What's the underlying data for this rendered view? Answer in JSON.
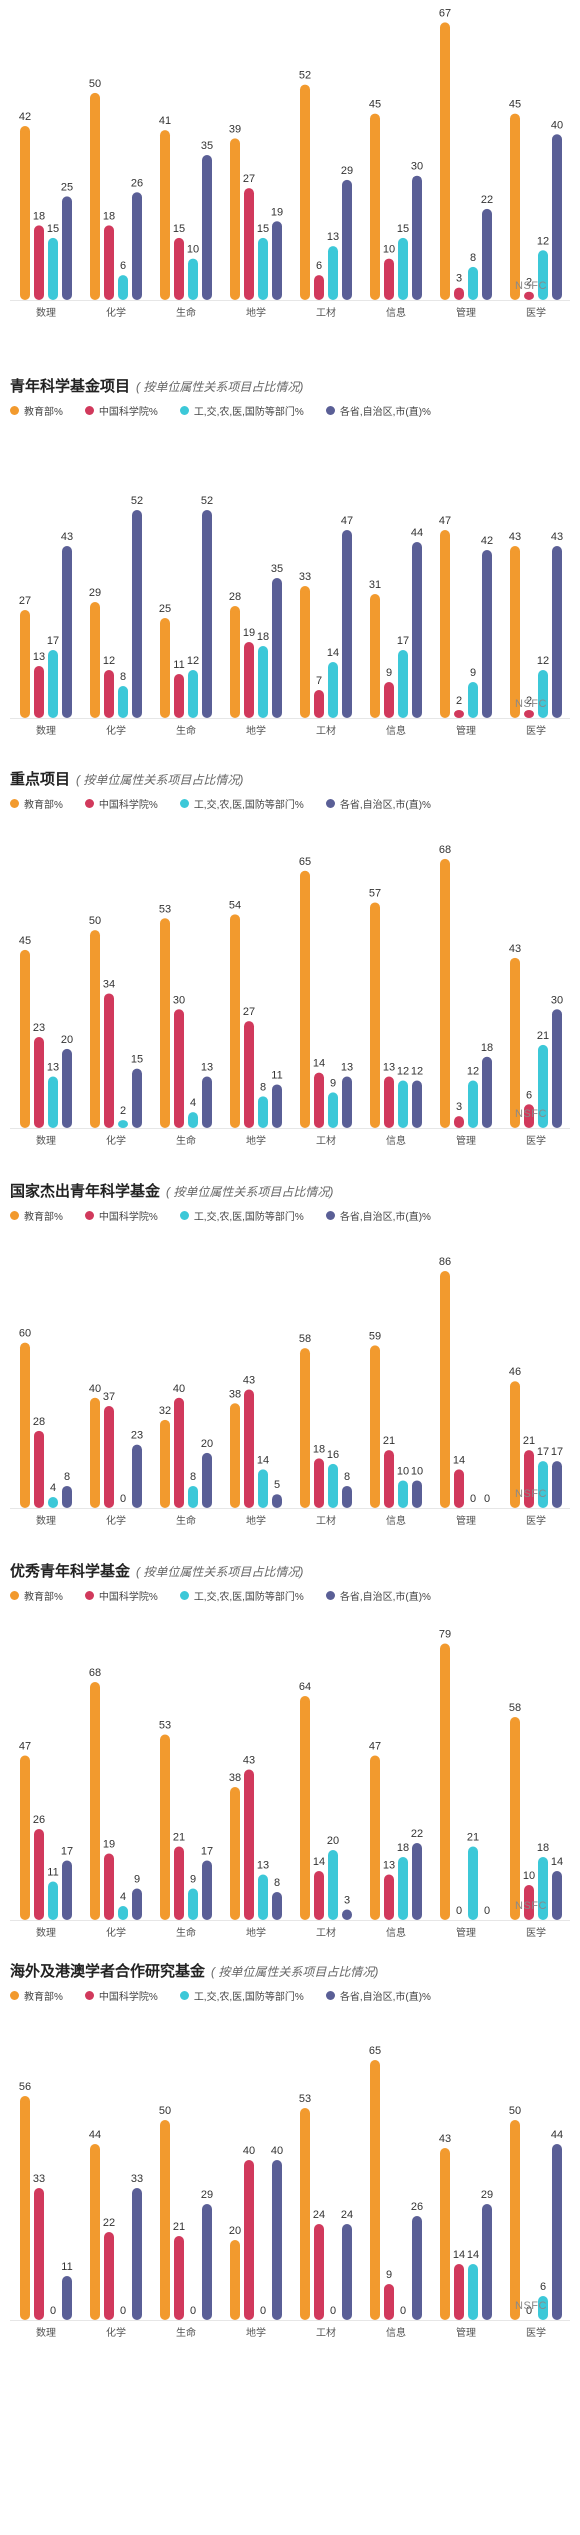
{
  "legend": [
    {
      "label": "教育部%",
      "color": "#f29a2e"
    },
    {
      "label": "中国科学院%",
      "color": "#d1395c"
    },
    {
      "label": "工,交,农,医,国防等部门%",
      "color": "#3cc8d8"
    },
    {
      "label": "各省,自治区,市(直)%",
      "color": "#5a5f96"
    }
  ],
  "watermark": "NSFC",
  "chart_data": [
    {
      "type": "bar",
      "title": "",
      "subtitle": "",
      "show_legend": false,
      "categories": [
        "数理",
        "化学",
        "生命",
        "地学",
        "工材",
        "信息",
        "管理",
        "医学"
      ],
      "series": [
        {
          "name": "教育部%",
          "values": [
            42,
            50,
            41,
            39,
            52,
            45,
            67,
            45
          ]
        },
        {
          "name": "中国科学院%",
          "values": [
            18,
            18,
            15,
            27,
            6,
            10,
            3,
            2
          ]
        },
        {
          "name": "工,交,农,医,国防等部门%",
          "values": [
            15,
            6,
            10,
            15,
            13,
            15,
            8,
            12
          ]
        },
        {
          "name": "各省,自治区,市(直)%",
          "values": [
            25,
            26,
            35,
            19,
            29,
            30,
            22,
            40
          ]
        }
      ],
      "ylim": [
        0,
        70
      ]
    },
    {
      "type": "bar",
      "title": "青年科学基金项目",
      "subtitle": "( 按单位属性关系项目占比情况)",
      "show_legend": true,
      "categories": [
        "数理",
        "化学",
        "生命",
        "地学",
        "工材",
        "信息",
        "管理",
        "医学"
      ],
      "series": [
        {
          "name": "教育部%",
          "values": [
            27,
            29,
            25,
            28,
            33,
            31,
            47,
            43
          ]
        },
        {
          "name": "中国科学院%",
          "values": [
            13,
            12,
            11,
            19,
            7,
            9,
            2,
            2
          ]
        },
        {
          "name": "工,交,农,医,国防等部门%",
          "values": [
            17,
            8,
            12,
            18,
            14,
            17,
            9,
            12
          ]
        },
        {
          "name": "各省,自治区,市(直)%",
          "values": [
            43,
            52,
            52,
            35,
            47,
            44,
            42,
            43
          ]
        }
      ],
      "ylim": [
        0,
        60
      ]
    },
    {
      "type": "bar",
      "title": "重点项目",
      "subtitle": "( 按单位属性关系项目占比情况)",
      "show_legend": true,
      "categories": [
        "数理",
        "化学",
        "生命",
        "地学",
        "工材",
        "信息",
        "管理",
        "医学"
      ],
      "series": [
        {
          "name": "教育部%",
          "values": [
            45,
            50,
            53,
            54,
            65,
            57,
            68,
            43
          ]
        },
        {
          "name": "中国科学院%",
          "values": [
            23,
            34,
            30,
            27,
            14,
            13,
            3,
            6
          ]
        },
        {
          "name": "工,交,农,医,国防等部门%",
          "values": [
            13,
            2,
            4,
            8,
            9,
            12,
            12,
            21
          ]
        },
        {
          "name": "各省,自治区,市(直)%",
          "values": [
            20,
            15,
            13,
            11,
            13,
            12,
            18,
            30
          ]
        }
      ],
      "ylim": [
        0,
        70
      ]
    },
    {
      "type": "bar",
      "title": "国家杰出青年科学基金",
      "subtitle": "( 按单位属性关系项目占比情况)",
      "show_legend": true,
      "categories": [
        "数理",
        "化学",
        "生命",
        "地学",
        "工材",
        "信息",
        "管理",
        "医学"
      ],
      "series": [
        {
          "name": "教育部%",
          "values": [
            60,
            40,
            32,
            38,
            58,
            59,
            86,
            46
          ]
        },
        {
          "name": "中国科学院%",
          "values": [
            28,
            37,
            40,
            43,
            18,
            21,
            14,
            21
          ]
        },
        {
          "name": "工,交,农,医,国防等部门%",
          "values": [
            4,
            0,
            8,
            14,
            16,
            10,
            0,
            17
          ]
        },
        {
          "name": "各省,自治区,市(直)%",
          "values": [
            8,
            23,
            20,
            5,
            8,
            10,
            0,
            17
          ]
        }
      ],
      "ylim": [
        0,
        90
      ]
    },
    {
      "type": "bar",
      "title": "优秀青年科学基金",
      "subtitle": "( 按单位属性关系项目占比情况)",
      "show_legend": true,
      "categories": [
        "数理",
        "化学",
        "生命",
        "地学",
        "工材",
        "信息",
        "管理",
        "医学"
      ],
      "series": [
        {
          "name": "教育部%",
          "values": [
            47,
            68,
            53,
            38,
            64,
            47,
            79,
            58
          ]
        },
        {
          "name": "中国科学院%",
          "values": [
            26,
            19,
            21,
            43,
            14,
            13,
            0,
            10
          ]
        },
        {
          "name": "工,交,农,医,国防等部门%",
          "values": [
            11,
            4,
            9,
            13,
            20,
            18,
            21,
            18
          ]
        },
        {
          "name": "各省,自治区,市(直)%",
          "values": [
            17,
            9,
            17,
            8,
            3,
            22,
            0,
            14
          ]
        }
      ],
      "ylim": [
        0,
        80
      ]
    },
    {
      "type": "bar",
      "title": "海外及港澳学者合作研究基金",
      "subtitle": "( 按单位属性关系项目占比情况)",
      "show_legend": true,
      "categories": [
        "数理",
        "化学",
        "生命",
        "地学",
        "工材",
        "信息",
        "管理",
        "医学"
      ],
      "series": [
        {
          "name": "教育部%",
          "values": [
            56,
            44,
            50,
            20,
            53,
            65,
            43,
            50
          ]
        },
        {
          "name": "中国科学院%",
          "values": [
            33,
            22,
            21,
            40,
            24,
            9,
            14,
            0
          ]
        },
        {
          "name": "工,交,农,医,国防等部门%",
          "values": [
            0,
            0,
            0,
            0,
            0,
            0,
            14,
            6
          ]
        },
        {
          "name": "各省,自治区,市(直)%",
          "values": [
            11,
            33,
            29,
            40,
            24,
            26,
            29,
            44
          ]
        }
      ],
      "ylim": [
        0,
        70
      ]
    }
  ]
}
